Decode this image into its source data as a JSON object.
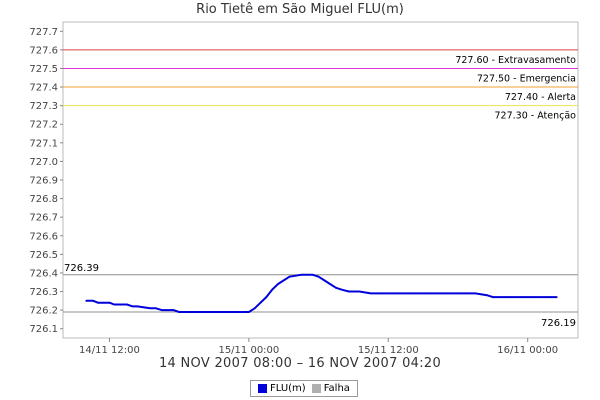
{
  "title": "Rio Tietê em São Miguel FLU(m)",
  "date_range": "14 NOV 2007 08:00 – 16 NOV 2007 04:20",
  "colors": {
    "series": "#0000dd",
    "extravasamento": "#dd4444",
    "emergencia": "#dd33dd",
    "alerta": "#f0a030",
    "atencao": "#f3e050",
    "reference": "#909090",
    "falha": "#b0b0b0"
  },
  "legend": [
    {
      "label": "FLU(m)",
      "color": "#0000dd"
    },
    {
      "label": "Falha",
      "color": "#b0b0b0"
    }
  ],
  "chart_data": {
    "type": "line",
    "title": "Rio Tietê em São Miguel FLU(m)",
    "xlabel": "14 NOV 2007 08:00 – 16 NOV 2007 04:20",
    "ylabel": "",
    "x_tick_labels": [
      "14/11 12:00",
      "15/11 00:00",
      "15/11 12:00",
      "16/11 00:00"
    ],
    "x_ticks_hours": [
      4,
      16,
      28,
      40
    ],
    "xlim_hours": [
      0,
      44.33
    ],
    "ylim": [
      726.05,
      727.75
    ],
    "y_ticks": [
      726.1,
      726.2,
      726.3,
      726.4,
      726.5,
      726.6,
      726.7,
      726.8,
      726.9,
      727.0,
      727.1,
      727.2,
      727.3,
      727.4,
      727.5,
      727.6,
      727.7
    ],
    "y_tick_labels": [
      "726.1",
      "726.2",
      "726.3",
      "726.4",
      "726.5",
      "726.6",
      "726.7",
      "726.8",
      "726.9",
      "727.0",
      "727.1",
      "727.2",
      "727.3",
      "727.4",
      "727.5",
      "727.6",
      "727.7"
    ],
    "thresholds": [
      {
        "value": 727.6,
        "label": "727.60 - Extravasamento",
        "color": "#dd4444"
      },
      {
        "value": 727.5,
        "label": "727.50 - Emergencia",
        "color": "#dd33dd"
      },
      {
        "value": 727.4,
        "label": "727.40 - Alerta",
        "color": "#f0a030"
      },
      {
        "value": 727.3,
        "label": "727.30 - Atenção",
        "color": "#f3e050"
      }
    ],
    "reference_lines": [
      {
        "value": 726.39,
        "label": "726.39",
        "label_side": "left"
      },
      {
        "value": 726.19,
        "label": "726.19",
        "label_side": "right"
      }
    ],
    "series": [
      {
        "name": "FLU(m)",
        "x_hours": [
          2.0,
          2.6,
          3.0,
          4.0,
          4.4,
          5.5,
          6.0,
          6.4,
          7.5,
          8.0,
          8.5,
          9.5,
          10.0,
          10.5,
          11.5,
          12.0,
          12.4,
          13.5,
          14.0,
          14.5,
          15.5,
          16.0,
          16.5,
          17.0,
          17.5,
          18.0,
          18.5,
          19.0,
          19.5,
          20.5,
          21.0,
          21.5,
          22.0,
          22.5,
          23.0,
          23.5,
          24.0,
          24.6,
          25.5,
          26.5,
          27.0,
          28.5,
          30.0,
          31.5,
          33.0,
          34.5,
          35.5,
          36.5,
          37.0,
          38.5,
          40.0,
          41.5,
          42.5
        ],
        "y": [
          726.25,
          726.25,
          726.24,
          726.24,
          726.23,
          726.23,
          726.22,
          726.22,
          726.21,
          726.21,
          726.2,
          726.2,
          726.19,
          726.19,
          726.19,
          726.19,
          726.19,
          726.19,
          726.19,
          726.19,
          726.19,
          726.19,
          726.21,
          726.24,
          726.27,
          726.31,
          726.34,
          726.36,
          726.38,
          726.39,
          726.39,
          726.39,
          726.38,
          726.36,
          726.34,
          726.32,
          726.31,
          726.3,
          726.3,
          726.29,
          726.29,
          726.29,
          726.29,
          726.29,
          726.29,
          726.29,
          726.29,
          726.28,
          726.27,
          726.27,
          726.27,
          726.27,
          726.27
        ]
      }
    ],
    "legend_position": "bottom-center",
    "grid": false
  }
}
